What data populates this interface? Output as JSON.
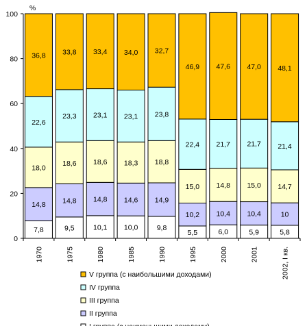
{
  "chart_data": {
    "type": "bar",
    "stacked": true,
    "y_unit": "%",
    "ylim": [
      0,
      100
    ],
    "yticks": [
      0,
      20,
      40,
      60,
      80,
      100
    ],
    "categories": [
      "1970",
      "1975",
      "1980",
      "1985",
      "1990",
      "1995",
      "2000",
      "2001",
      "2002, I кв."
    ],
    "series": [
      {
        "name": "I группа (с наименьшими доходами)",
        "color": "#ffffff",
        "values": [
          7.8,
          9.5,
          10.1,
          10.0,
          9.8,
          5.5,
          6.0,
          5.9,
          5.8
        ],
        "labels": [
          "7,8",
          "9,5",
          "10,1",
          "10,0",
          "9,8",
          "5,5",
          "6,0",
          "5,9",
          "5,8"
        ]
      },
      {
        "name": "II группа",
        "color": "#ccccff",
        "values": [
          14.8,
          14.8,
          14.8,
          14.6,
          14.9,
          10.2,
          10.4,
          10.4,
          10.0
        ],
        "labels": [
          "14,8",
          "14,8",
          "14,8",
          "14,6",
          "14,9",
          "10,2",
          "10,4",
          "10,4",
          "10"
        ]
      },
      {
        "name": "III группа",
        "color": "#ffffcc",
        "values": [
          18.0,
          18.6,
          18.6,
          18.3,
          18.8,
          15.0,
          14.8,
          15.0,
          14.7
        ],
        "labels": [
          "18,0",
          "18,6",
          "18,6",
          "18,3",
          "18,8",
          "15,0",
          "14,8",
          "15,0",
          "14,7"
        ]
      },
      {
        "name": "IV группа",
        "color": "#ccffff",
        "values": [
          22.6,
          23.3,
          23.1,
          23.1,
          23.8,
          22.4,
          21.7,
          21.7,
          21.4
        ],
        "labels": [
          "22,6",
          "23,3",
          "23,1",
          "23,1",
          "23,8",
          "22,4",
          "21,7",
          "21,7",
          "21,4"
        ]
      },
      {
        "name": "V группа (с наибольшими доходами)",
        "color": "#ffc000",
        "values": [
          36.8,
          33.8,
          33.4,
          34.0,
          32.7,
          46.9,
          47.6,
          47.0,
          48.1
        ],
        "labels": [
          "36,8",
          "33,8",
          "33,4",
          "34,0",
          "32,7",
          "46,9",
          "47,6",
          "47,0",
          "48,1"
        ]
      }
    ],
    "legend_placement": "bottom",
    "grid": false
  }
}
